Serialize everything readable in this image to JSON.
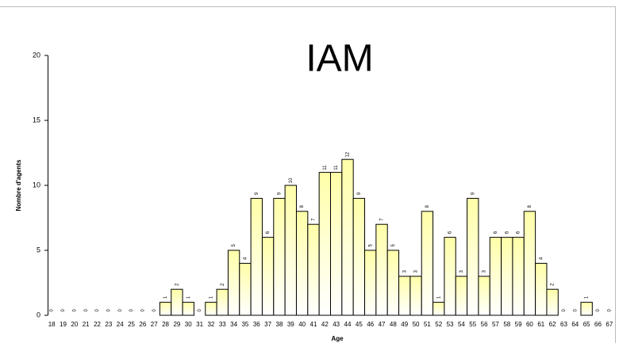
{
  "chart_data": {
    "type": "bar",
    "title": "IAM",
    "x_label": "Age",
    "y_label": "Nombre d'agents",
    "categories": [
      "18",
      "19",
      "20",
      "21",
      "22",
      "23",
      "24",
      "25",
      "26",
      "27",
      "28",
      "29",
      "30",
      "31",
      "32",
      "33",
      "34",
      "35",
      "36",
      "37",
      "38",
      "39",
      "40",
      "41",
      "42",
      "43",
      "44",
      "45",
      "46",
      "47",
      "48",
      "49",
      "50",
      "51",
      "52",
      "53",
      "54",
      "55",
      "56",
      "57",
      "58",
      "59",
      "60",
      "61",
      "62",
      "63",
      "64",
      "65",
      "66",
      "67"
    ],
    "values": [
      0,
      0,
      0,
      0,
      0,
      0,
      0,
      0,
      0,
      0,
      1,
      2,
      1,
      0,
      1,
      2,
      5,
      4,
      9,
      6,
      9,
      10,
      8,
      7,
      11,
      11,
      12,
      9,
      5,
      7,
      5,
      3,
      3,
      8,
      1,
      6,
      3,
      9,
      3,
      6,
      6,
      6,
      8,
      4,
      2,
      0,
      0,
      1,
      0,
      0
    ],
    "color": "#ffffa8",
    "ylim": [
      0,
      20
    ],
    "yticks": [
      0,
      5,
      10,
      15,
      20
    ]
  }
}
